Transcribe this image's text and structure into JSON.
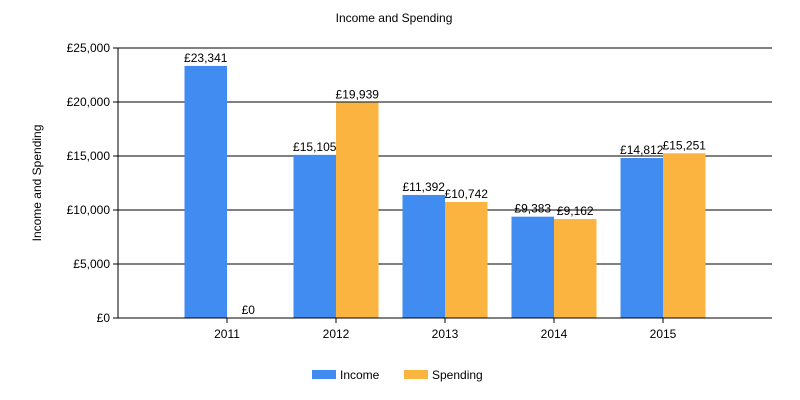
{
  "chart_data": {
    "type": "bar",
    "title": "Income and Spending",
    "xlabel": "",
    "ylabel": "Income and Spending",
    "categories": [
      "2011",
      "2012",
      "2013",
      "2014",
      "2015"
    ],
    "series": [
      {
        "name": "Income",
        "color": "#418cf0",
        "values": [
          23341,
          15105,
          11392,
          9383,
          14812
        ],
        "labels": [
          "£23,341",
          "£15,105",
          "£11,392",
          "£9,383",
          "£14,812"
        ]
      },
      {
        "name": "Spending",
        "color": "#fcb441",
        "values": [
          0,
          19939,
          10742,
          9162,
          15251
        ],
        "labels": [
          "£0",
          "£19,939",
          "£10,742",
          "£9,162",
          "£15,251"
        ]
      }
    ],
    "ylim": [
      0,
      25000
    ],
    "yticks": [
      0,
      5000,
      10000,
      15000,
      20000,
      25000
    ],
    "ytick_labels": [
      "£0",
      "£5,000",
      "£10,000",
      "£15,000",
      "£20,000",
      "£25,000"
    ],
    "grid": "horizontal",
    "legend_position": "bottom-center"
  }
}
